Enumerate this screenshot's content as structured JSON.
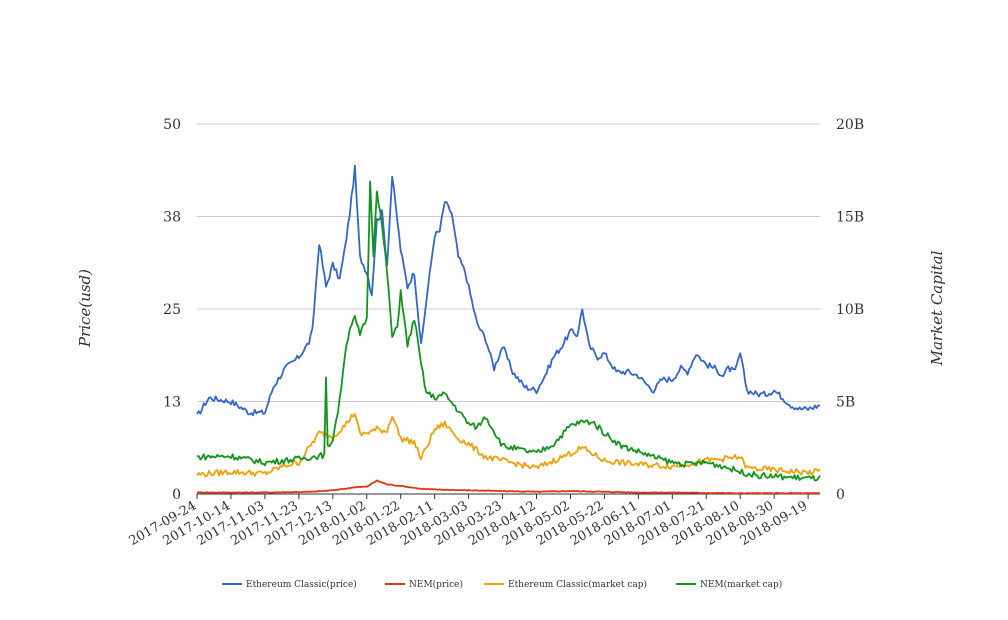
{
  "chart_data": {
    "type": "line",
    "title": "",
    "xlabel": "",
    "ylabel_left": "Price(usd)",
    "ylabel_right": "Market Capital",
    "y_left_ticks": [
      "0",
      "13",
      "25",
      "38",
      "50"
    ],
    "y_right_ticks": [
      "0",
      "5B",
      "10B",
      "15B",
      "20B"
    ],
    "ylim_left": [
      0,
      50
    ],
    "ylim_right": [
      0,
      20000000000
    ],
    "x_ticks": [
      "2017-09-24",
      "2017-10-14",
      "2017-11-03",
      "2017-11-23",
      "2017-12-13",
      "2018-01-02",
      "2018-01-22",
      "2018-02-11",
      "2018-03-03",
      "2018-03-23",
      "2018-04-12",
      "2018-05-02",
      "2018-05-22",
      "2018-06-11",
      "2018-07-01",
      "2018-07-21",
      "2018-08-10",
      "2018-08-30",
      "2018-09-19"
    ],
    "xlim": [
      "2017-09-24",
      "2018-09-26"
    ],
    "grid": true,
    "legend_position": "bottom",
    "series": [
      {
        "name": "Ethereum Classic(price)",
        "axis": "left",
        "color": "#3366cc",
        "x": [
          "2017-09-24",
          "2017-10-01",
          "2017-10-14",
          "2017-10-25",
          "2017-11-03",
          "2017-11-08",
          "2017-11-15",
          "2017-11-23",
          "2017-11-29",
          "2017-12-01",
          "2017-12-05",
          "2017-12-09",
          "2017-12-13",
          "2017-12-17",
          "2017-12-20",
          "2017-12-23",
          "2017-12-26",
          "2017-12-29",
          "2018-01-02",
          "2018-01-05",
          "2018-01-08",
          "2018-01-11",
          "2018-01-14",
          "2018-01-17",
          "2018-01-22",
          "2018-01-26",
          "2018-01-30",
          "2018-02-03",
          "2018-02-06",
          "2018-02-11",
          "2018-02-14",
          "2018-02-17",
          "2018-02-21",
          "2018-02-25",
          "2018-03-01",
          "2018-03-03",
          "2018-03-08",
          "2018-03-13",
          "2018-03-18",
          "2018-03-23",
          "2018-03-29",
          "2018-04-05",
          "2018-04-12",
          "2018-04-17",
          "2018-04-22",
          "2018-04-27",
          "2018-05-02",
          "2018-05-06",
          "2018-05-09",
          "2018-05-13",
          "2018-05-18",
          "2018-05-22",
          "2018-05-29",
          "2018-06-05",
          "2018-06-11",
          "2018-06-15",
          "2018-06-20",
          "2018-06-25",
          "2018-07-01",
          "2018-07-06",
          "2018-07-10",
          "2018-07-15",
          "2018-07-21",
          "2018-07-26",
          "2018-07-31",
          "2018-08-03",
          "2018-08-07",
          "2018-08-10",
          "2018-08-14",
          "2018-08-20",
          "2018-08-25",
          "2018-08-30",
          "2018-09-04",
          "2018-09-09",
          "2018-09-14",
          "2018-09-19",
          "2018-09-26"
        ],
        "values": [
          10.5,
          13.0,
          12.5,
          11.0,
          11.0,
          14.5,
          17.0,
          18.5,
          20.5,
          22.0,
          34.0,
          28.0,
          31.0,
          29.0,
          33.0,
          38.0,
          44.0,
          32.0,
          30.0,
          27.0,
          37.0,
          38.0,
          31.0,
          43.0,
          33.0,
          28.0,
          30.0,
          20.0,
          26.0,
          35.0,
          35.5,
          39.5,
          38.0,
          32.0,
          30.0,
          28.0,
          23.0,
          21.0,
          17.0,
          20.0,
          16.5,
          14.5,
          14.0,
          16.0,
          18.5,
          20.0,
          22.0,
          21.5,
          25.0,
          20.0,
          18.5,
          19.0,
          16.5,
          16.5,
          16.0,
          15.0,
          14.0,
          15.5,
          15.5,
          17.0,
          16.5,
          19.0,
          17.5,
          17.0,
          16.0,
          17.0,
          16.5,
          19.0,
          14.0,
          13.5,
          13.5,
          14.0,
          13.0,
          12.0,
          11.5,
          11.5,
          12.0
        ]
      },
      {
        "name": "NEM(price)",
        "axis": "left",
        "color": "#dc3912",
        "x": [
          "2017-09-24",
          "2017-11-03",
          "2017-12-01",
          "2017-12-13",
          "2017-12-26",
          "2018-01-02",
          "2018-01-08",
          "2018-01-14",
          "2018-01-22",
          "2018-02-03",
          "2018-02-11",
          "2018-03-03",
          "2018-03-23",
          "2018-04-12",
          "2018-05-02",
          "2018-05-22",
          "2018-06-11",
          "2018-07-01",
          "2018-08-10",
          "2018-09-19",
          "2018-09-26"
        ],
        "values": [
          0.2,
          0.2,
          0.3,
          0.5,
          0.9,
          1.0,
          1.8,
          1.3,
          1.1,
          0.7,
          0.6,
          0.5,
          0.4,
          0.3,
          0.4,
          0.3,
          0.2,
          0.2,
          0.1,
          0.1,
          0.1
        ]
      },
      {
        "name": "Ethereum Classic(market cap)",
        "axis": "right",
        "color": "#f0a10a",
        "x": [
          "2017-09-24",
          "2017-10-14",
          "2017-11-03",
          "2017-11-15",
          "2017-11-23",
          "2017-12-05",
          "2017-12-13",
          "2017-12-20",
          "2017-12-26",
          "2017-12-29",
          "2018-01-02",
          "2018-01-08",
          "2018-01-14",
          "2018-01-17",
          "2018-01-22",
          "2018-01-30",
          "2018-02-03",
          "2018-02-11",
          "2018-02-17",
          "2018-02-25",
          "2018-03-03",
          "2018-03-13",
          "2018-03-23",
          "2018-04-12",
          "2018-05-02",
          "2018-05-09",
          "2018-05-22",
          "2018-06-11",
          "2018-07-01",
          "2018-07-21",
          "2018-08-10",
          "2018-08-14",
          "2018-08-30",
          "2018-09-19",
          "2018-09-26"
        ],
        "values": [
          1050000000,
          1200000000,
          1100000000,
          1550000000,
          1700000000,
          3300000000,
          3100000000,
          3700000000,
          4400000000,
          3200000000,
          3300000000,
          3500000000,
          3400000000,
          4300000000,
          3000000000,
          2800000000,
          1900000000,
          3500000000,
          3800000000,
          3000000000,
          2700000000,
          2000000000,
          1800000000,
          1400000000,
          2200000000,
          2500000000,
          1800000000,
          1600000000,
          1500000000,
          1800000000,
          2000000000,
          1400000000,
          1300000000,
          1150000000,
          1250000000
        ]
      },
      {
        "name": "NEM(market cap)",
        "axis": "right",
        "color": "#109618",
        "x": [
          "2017-09-24",
          "2017-10-14",
          "2017-11-03",
          "2017-11-23",
          "2017-12-08",
          "2017-12-09",
          "2017-12-10",
          "2017-12-13",
          "2017-12-17",
          "2017-12-20",
          "2017-12-23",
          "2017-12-26",
          "2017-12-29",
          "2018-01-02",
          "2018-01-04",
          "2018-01-06",
          "2018-01-08",
          "2018-01-11",
          "2018-01-14",
          "2018-01-17",
          "2018-01-20",
          "2018-01-22",
          "2018-01-26",
          "2018-01-30",
          "2018-02-03",
          "2018-02-06",
          "2018-02-11",
          "2018-02-17",
          "2018-02-25",
          "2018-03-03",
          "2018-03-08",
          "2018-03-13",
          "2018-03-23",
          "2018-04-12",
          "2018-04-22",
          "2018-05-02",
          "2018-05-09",
          "2018-05-15",
          "2018-05-22",
          "2018-06-01",
          "2018-06-11",
          "2018-06-20",
          "2018-07-01",
          "2018-07-10",
          "2018-07-21",
          "2018-07-31",
          "2018-08-10",
          "2018-08-20",
          "2018-08-30",
          "2018-09-09",
          "2018-09-19",
          "2018-09-26"
        ],
        "values": [
          2000000000,
          2050000000,
          1700000000,
          1900000000,
          2100000000,
          6200000000,
          2500000000,
          3000000000,
          5000000000,
          7500000000,
          9000000000,
          9500000000,
          8600000000,
          9500000000,
          16800000000,
          13000000000,
          16500000000,
          14500000000,
          12000000000,
          8500000000,
          9000000000,
          11000000000,
          8000000000,
          9500000000,
          7000000000,
          5500000000,
          5200000000,
          5400000000,
          4500000000,
          3800000000,
          3600000000,
          4200000000,
          2600000000,
          2200000000,
          2700000000,
          3700000000,
          3900000000,
          3900000000,
          3300000000,
          2600000000,
          2300000000,
          2000000000,
          1700000000,
          1600000000,
          1700000000,
          1500000000,
          1200000000,
          1000000000,
          950000000,
          900000000,
          850000000,
          850000000
        ]
      }
    ]
  }
}
